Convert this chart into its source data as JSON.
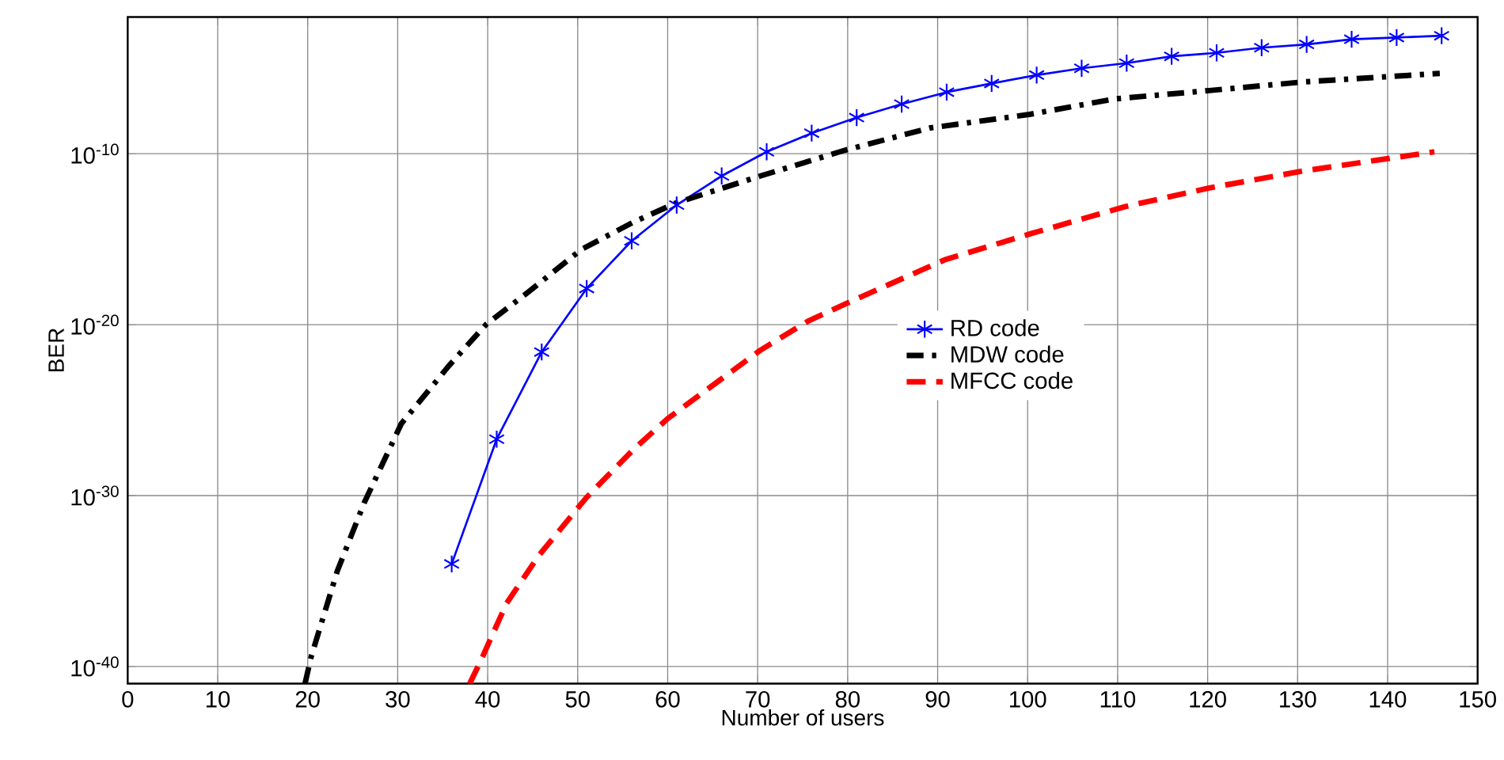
{
  "chart_data": {
    "type": "line",
    "xlabel": "Number of users",
    "ylabel": "BER",
    "log": "y",
    "xlim": [
      0,
      150
    ],
    "xticks": [
      0,
      10,
      20,
      30,
      40,
      50,
      60,
      70,
      80,
      90,
      100,
      110,
      120,
      130,
      140,
      150
    ],
    "ylim": [
      1e-41,
      0.01
    ],
    "yticks": [
      {
        "value": 1e-40,
        "label": "10$^{-40}$"
      },
      {
        "value": 1e-30,
        "label": "10$^{-30}$"
      },
      {
        "value": 1e-20,
        "label": "10$^{-20}$"
      },
      {
        "value": 1e-10,
        "label": "10$^{-10}$"
      }
    ],
    "grid": true,
    "legend": "right",
    "series": [
      {
        "name": "RD code",
        "color": "#0000ff",
        "marker": "cross",
        "line_style": "solid",
        "x": [
          36,
          41,
          46,
          51,
          56,
          61,
          66,
          71,
          76,
          81,
          86,
          91,
          96,
          101,
          106,
          111,
          116,
          121,
          126,
          131,
          136,
          141,
          146
        ],
        "values": [
          1e-34,
          2e-27,
          2.5e-22,
          1.3e-18,
          8e-16,
          1e-13,
          5e-12,
          1.3e-10,
          1.6e-09,
          1.3e-08,
          8e-08,
          4e-07,
          1.3e-06,
          4e-06,
          1e-05,
          2e-05,
          5e-05,
          8e-05,
          0.00016,
          0.00025,
          0.0005,
          0.00063,
          0.0008
        ]
      },
      {
        "name": "MDW code",
        "color": "#000000",
        "marker": "none",
        "line_style": "dashdot",
        "x": [
          19.7,
          20.4,
          23.3,
          26.3,
          30.4,
          35.7,
          39.8,
          44.5,
          50.4,
          56.2,
          60.9,
          70.3,
          79.7,
          89.1,
          100.2,
          109.6,
          120.2,
          130.7,
          145.8
        ],
        "values": [
          1e-41,
          4e-40,
          4e-35,
          4e-31,
          1.6e-26,
          4e-23,
          1e-20,
          8e-19,
          2.5e-16,
          1e-14,
          1.3e-13,
          5e-12,
          1.6e-10,
          3.2e-09,
          2e-08,
          1.6e-07,
          5e-07,
          1.6e-06,
          5e-06
        ]
      },
      {
        "name": "MFCC code",
        "color": "#ff0000",
        "marker": "none",
        "line_style": "dashed",
        "x": [
          38.0,
          39.2,
          42.1,
          45.7,
          51.0,
          56.2,
          60.0,
          70.3,
          75.6,
          79.7,
          90.8,
          100.2,
          110.8,
          120.2,
          130.7,
          145.2
        ],
        "values": [
          1e-41,
          2e-40,
          5e-37,
          3.2e-34,
          8e-31,
          5e-28,
          3.2e-26,
          3.2e-22,
          1.6e-20,
          1.6e-19,
          6.3e-17,
          2e-15,
          8e-14,
          1e-12,
          1e-11,
          1.3e-10
        ]
      }
    ]
  }
}
